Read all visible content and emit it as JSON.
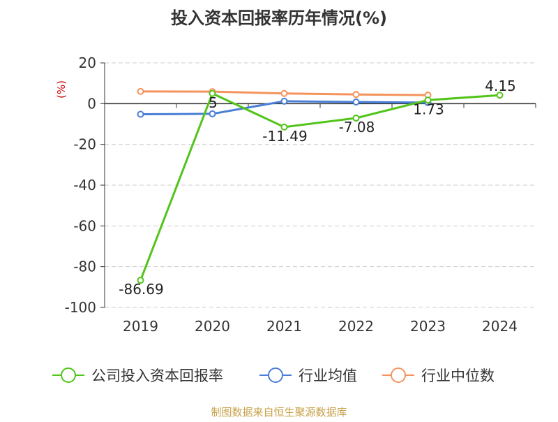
{
  "chart_data": {
    "type": "line",
    "title": "投入资本回报率历年情况(%)",
    "ylabel": "(%)",
    "categories": [
      "2019",
      "2020",
      "2021",
      "2022",
      "2023",
      "2024"
    ],
    "ylim": [
      -100,
      20
    ],
    "yticks": [
      20,
      0,
      -20,
      -40,
      -60,
      -80,
      -100
    ],
    "grid": true,
    "legend_position": "bottom",
    "series": [
      {
        "name": "公司投入资本回报率",
        "color": "#52c41a",
        "values": [
          -86.69,
          5,
          -11.49,
          -7.08,
          1.73,
          4.15
        ],
        "labels": [
          "-86.69",
          "5",
          "-11.49",
          "-7.08",
          "1.73",
          "4.15"
        ]
      },
      {
        "name": "行业均值",
        "color": "#4a7fd6",
        "values": [
          -5.2,
          -5.0,
          1.2,
          0.8,
          0.5,
          null
        ]
      },
      {
        "name": "行业中位数",
        "color": "#f5935d",
        "values": [
          6.0,
          5.9,
          5.0,
          4.5,
          4.2,
          null
        ]
      }
    ]
  },
  "footer": {
    "source": "制图数据来自恒生聚源数据库"
  }
}
